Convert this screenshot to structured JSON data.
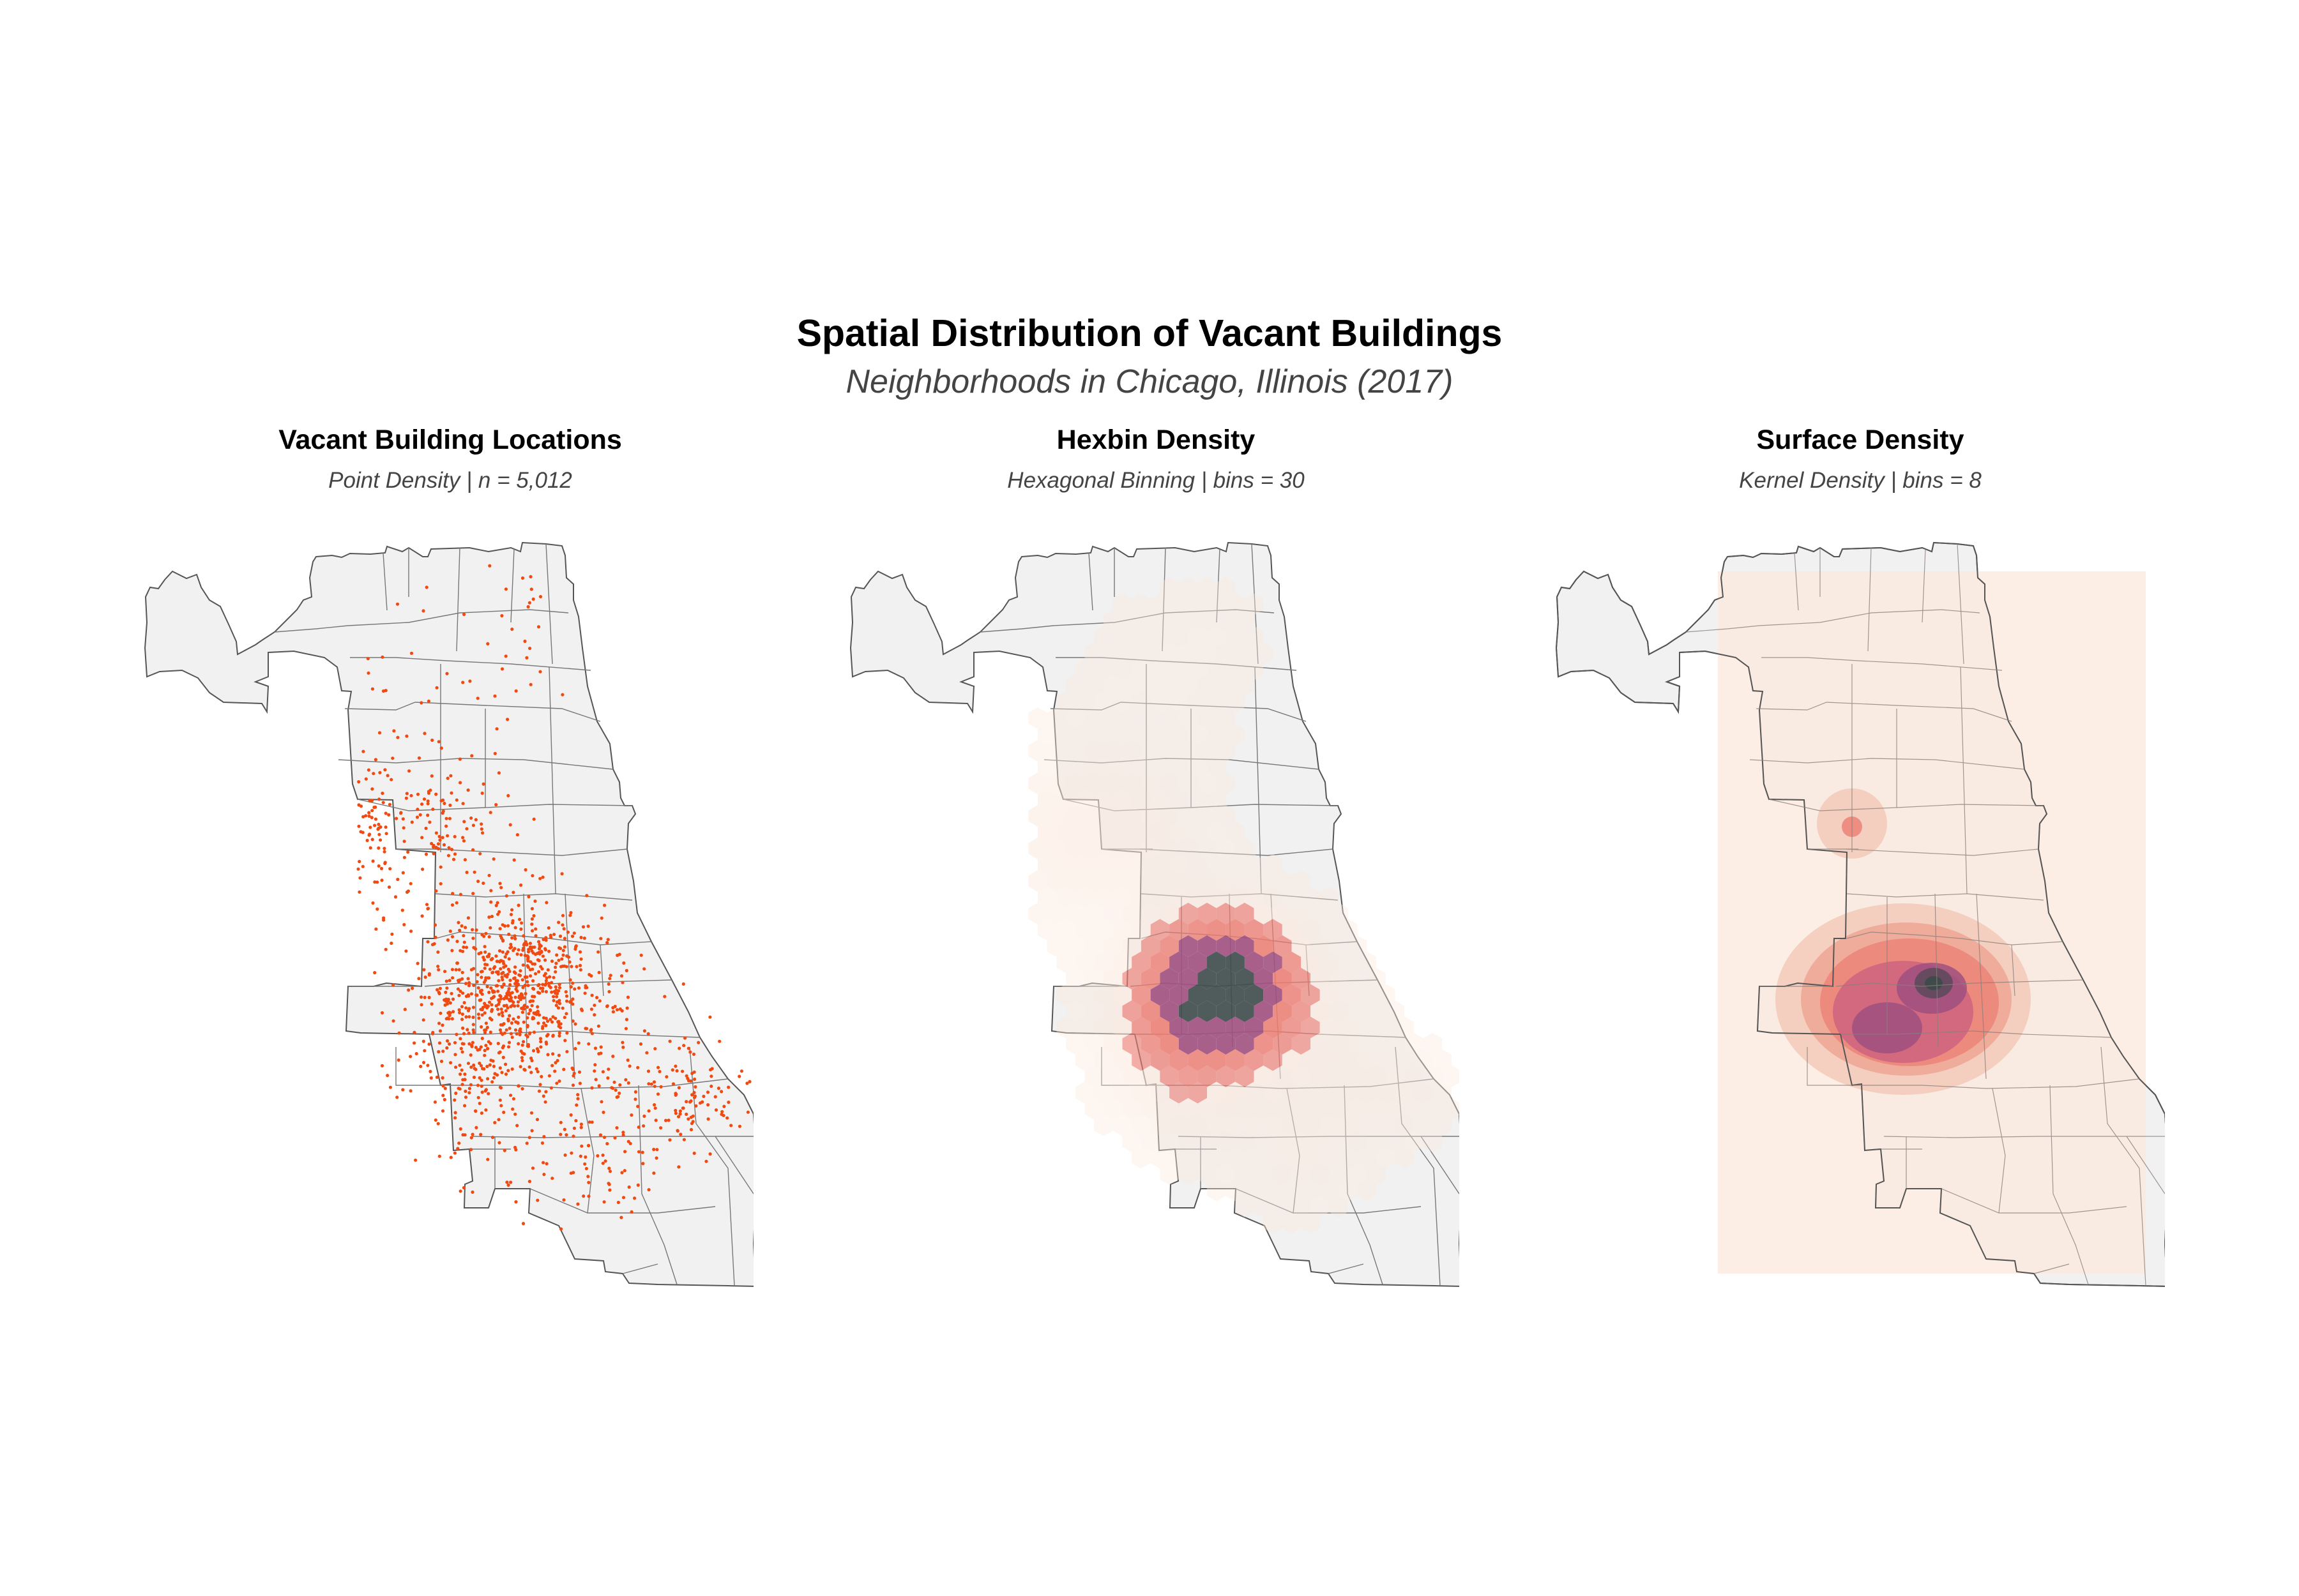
{
  "title": "Spatial Distribution of Vacant Buildings",
  "subtitle": "Neighborhoods in Chicago, Illinois (2017)",
  "panels": [
    {
      "title": "Vacant Building Locations",
      "subtitle": "Point Density | n = 5,012",
      "method": "points"
    },
    {
      "title": "Hexbin Density",
      "subtitle": "Hexagonal Binning | bins = 30",
      "method": "hexbin"
    },
    {
      "title": "Surface Density",
      "subtitle": "Kernel Density | bins = 8",
      "method": "kernel"
    }
  ],
  "colors": {
    "land_fill": "#f1f1f1",
    "boundary": "#555555",
    "point": "#f04a12",
    "density_low": "#fbe8dc",
    "density_mid": "#ec7c72",
    "density_high": "#a0507f",
    "density_peak": "#3e4a4a"
  }
}
